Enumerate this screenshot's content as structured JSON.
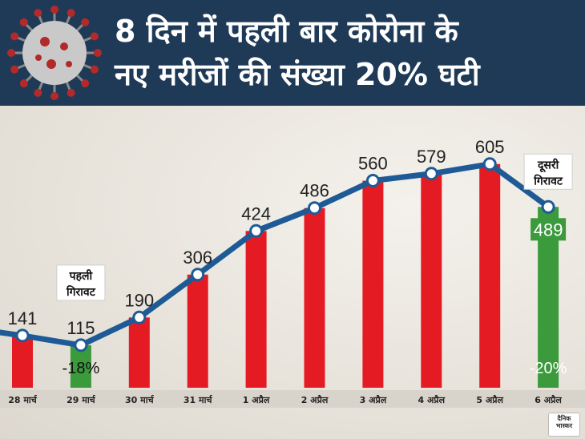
{
  "header": {
    "title_line1": "8 दिन में पहली बार कोरोना के",
    "title_line2": "नए मरीजों की संख्या 20% घटी"
  },
  "logo_text": "दैनिक भास्कर",
  "colors": {
    "header_bg": "#1f3a57",
    "bar_red": "#e51b23",
    "bar_green": "#3a9a3c",
    "line_blue": "#1e5b96"
  },
  "chart_data": {
    "type": "bar",
    "categories": [
      "28 मार्च",
      "29 मार्च",
      "30 मार्च",
      "31 मार्च",
      "1 अप्रैल",
      "2 अप्रैल",
      "3 अप्रैल",
      "4 अप्रैल",
      "5 अप्रैल",
      "6 अप्रैल"
    ],
    "values": [
      141,
      115,
      190,
      306,
      424,
      486,
      560,
      579,
      605,
      489
    ],
    "value_labels": [
      "141",
      "115",
      "190",
      "306",
      "424",
      "486",
      "560",
      "579",
      "605",
      "489"
    ],
    "bar_colors": [
      "red",
      "green",
      "red",
      "red",
      "red",
      "red",
      "red",
      "red",
      "red",
      "green"
    ],
    "ylim": [
      0,
      700
    ],
    "annotations": [
      {
        "index": 1,
        "text": "पहली गिरावट",
        "change": "-18%"
      },
      {
        "index": 9,
        "text": "दूसरी गिरावट",
        "change": "-20%"
      }
    ]
  }
}
